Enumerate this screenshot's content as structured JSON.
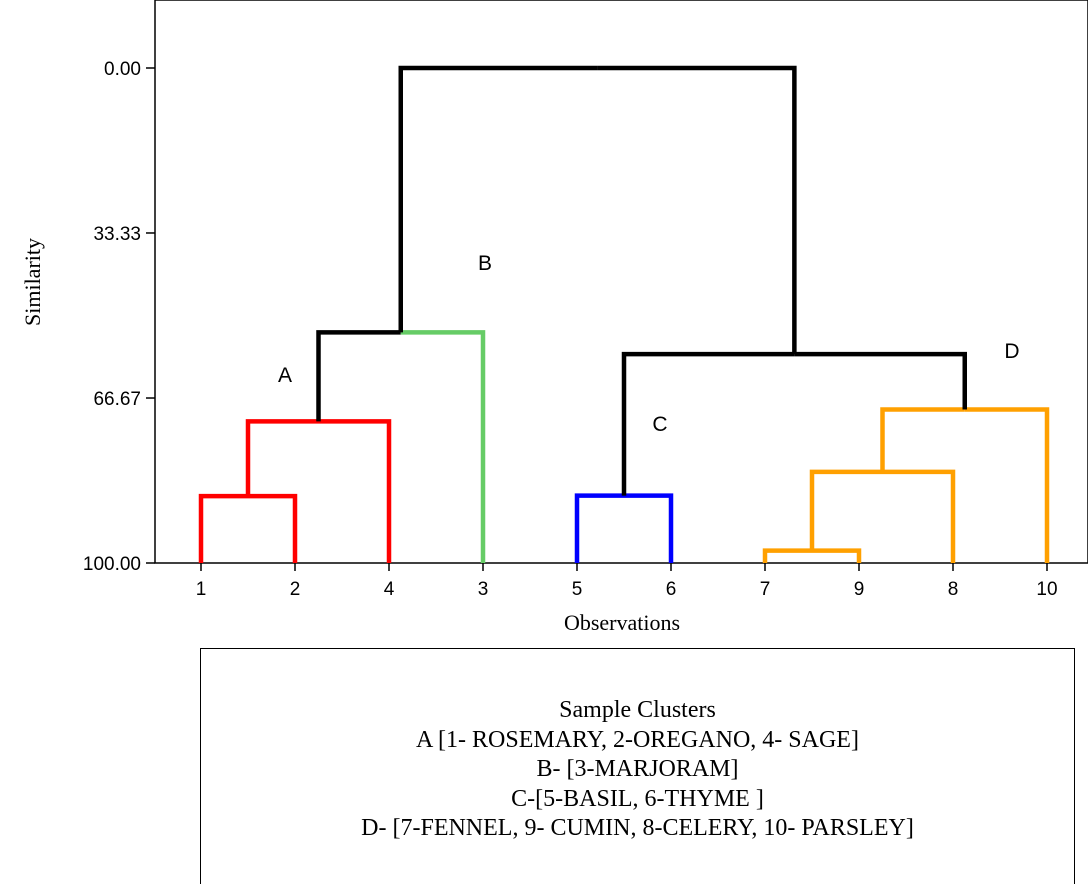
{
  "chart_data": {
    "type": "dendrogram",
    "xlabel": "Observations",
    "ylabel": "Similarity",
    "yticks": [
      "0.00",
      "33.33",
      "66.67",
      "100.00"
    ],
    "ylim": [
      0,
      100
    ],
    "y_inverted": true,
    "leaf_order": [
      "1",
      "2",
      "4",
      "3",
      "5",
      "6",
      "7",
      "9",
      "8",
      "10"
    ],
    "links": [
      {
        "left": "1",
        "right": "2",
        "similarity": 86.5,
        "color": "#ff0000"
      },
      {
        "left": "1-2",
        "right": "4",
        "similarity": 71.4,
        "color": "#ff0000"
      },
      {
        "left": "A",
        "right": "3",
        "similarity": 53.4,
        "color": "#000000"
      },
      {
        "left": "5",
        "right": "6",
        "similarity": 86.4,
        "color": "#0000ff"
      },
      {
        "left": "7",
        "right": "9",
        "similarity": 97.5,
        "color": "#ffa000"
      },
      {
        "left": "7-9",
        "right": "8",
        "similarity": 81.6,
        "color": "#ffa000"
      },
      {
        "left": "7-9-8",
        "right": "10",
        "similarity": 69.0,
        "color": "#ffa000"
      },
      {
        "left": "C",
        "right": "D",
        "similarity": 57.8,
        "color": "#000000"
      },
      {
        "left": "A-B",
        "right": "C-D",
        "similarity": 0.0,
        "color": "#000000"
      }
    ],
    "leaf_colors": {
      "3": "#66cc66"
    },
    "cluster_labels": [
      "A",
      "B",
      "C",
      "D"
    ]
  },
  "legend": {
    "title": "Sample Clusters",
    "lines": [
      "A [1- ROSEMARY, 2-OREGANO, 4- SAGE]",
      "B- [3-MARJORAM]",
      "C-[5-BASIL, 6-THYME ]",
      "D- [7-FENNEL, 9- CUMIN, 8-CELERY, 10- PARSLEY]"
    ]
  }
}
